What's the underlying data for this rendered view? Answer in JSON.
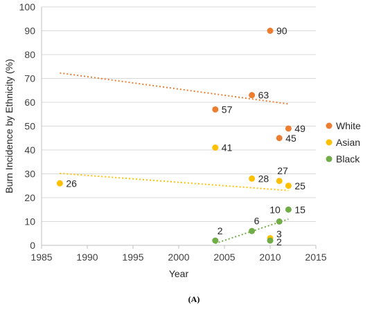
{
  "chart_data": {
    "type": "scatter",
    "title": "",
    "caption": "(A)",
    "xlabel": "Year",
    "ylabel": "Burn Incidence by Ethnicity (%)",
    "xlim": [
      1985,
      2015
    ],
    "ylim": [
      0,
      100
    ],
    "xticks": [
      "1985",
      "1990",
      "1995",
      "2000",
      "2005",
      "2010",
      "2015"
    ],
    "yticks": [
      "0",
      "10",
      "20",
      "30",
      "40",
      "50",
      "60",
      "70",
      "80",
      "90",
      "100"
    ],
    "grid": "horizontal",
    "legend_position": "right",
    "series": [
      {
        "name": "White",
        "color": "#ED7D31",
        "points": [
          {
            "x": 2004,
            "y": 57,
            "label": "57"
          },
          {
            "x": 2008,
            "y": 63,
            "label": "63"
          },
          {
            "x": 2010,
            "y": 90,
            "label": "90"
          },
          {
            "x": 2011,
            "y": 45,
            "label": "45"
          },
          {
            "x": 2012,
            "y": 49,
            "label": "49"
          }
        ],
        "trendline": {
          "x": [
            1987,
            2012
          ],
          "y": [
            72.3,
            59.3
          ]
        }
      },
      {
        "name": "Asian",
        "color": "#FFC000",
        "points": [
          {
            "x": 1987,
            "y": 26,
            "label": "26"
          },
          {
            "x": 2004,
            "y": 41,
            "label": "41"
          },
          {
            "x": 2008,
            "y": 28,
            "label": "28"
          },
          {
            "x": 2010,
            "y": 3,
            "label": "3"
          },
          {
            "x": 2011,
            "y": 27,
            "label": "27"
          },
          {
            "x": 2012,
            "y": 25,
            "label": "25"
          }
        ],
        "trendline": {
          "x": [
            1987,
            2012
          ],
          "y": [
            30.2,
            23.0
          ]
        }
      },
      {
        "name": "Black",
        "color": "#70AD47",
        "points": [
          {
            "x": 2004,
            "y": 2,
            "label": "2"
          },
          {
            "x": 2008,
            "y": 6,
            "label": "6"
          },
          {
            "x": 2010,
            "y": 2,
            "label": "2"
          },
          {
            "x": 2011,
            "y": 10,
            "label": "10"
          },
          {
            "x": 2012,
            "y": 15,
            "label": "15"
          }
        ],
        "trendline": {
          "x": [
            2004,
            2012
          ],
          "y": [
            0.8,
            11.0
          ]
        }
      }
    ]
  }
}
